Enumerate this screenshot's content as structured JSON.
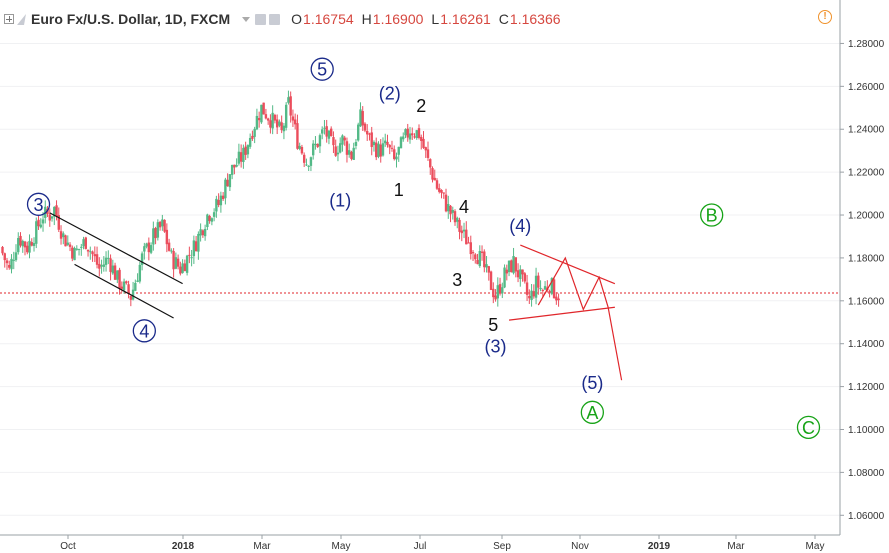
{
  "header": {
    "symbol": "Euro Fx/U.S. Dollar, 1D, FXCM",
    "open_label": "O",
    "open": "1.16754",
    "high_label": "H",
    "high": "1.16900",
    "low_label": "L",
    "low": "1.16261",
    "close_label": "C",
    "close": "1.16366",
    "warning_icon": "!"
  },
  "colors": {
    "up": "#53b987",
    "down": "#eb4d5c",
    "wave_blue": "#1a2a8a",
    "wave_green": "#17a317",
    "wave_black": "#111111",
    "triangle_red": "#e0262b",
    "price_line": "#e0262b"
  },
  "chart_data": {
    "type": "candlestick",
    "ylim": [
      1.055,
      1.29
    ],
    "x_ticks": [
      "Oct",
      "2018",
      "Mar",
      "May",
      "Jul",
      "Sep",
      "Nov",
      "2019",
      "Mar",
      "May"
    ],
    "y_ticks": [
      "1.28000",
      "1.26000",
      "1.24000",
      "1.22000",
      "1.20000",
      "1.18000",
      "1.16000",
      "1.14000",
      "1.12000",
      "1.10000",
      "1.08000",
      "1.06000"
    ],
    "current_price": 1.16366,
    "anchors": [
      {
        "t": 0,
        "p": 1.185
      },
      {
        "t": 4,
        "p": 1.174
      },
      {
        "t": 8,
        "p": 1.19
      },
      {
        "t": 12,
        "p": 1.185
      },
      {
        "t": 16,
        "p": 1.193
      },
      {
        "t": 19,
        "p": 1.2
      },
      {
        "t": 22,
        "p": 1.2
      },
      {
        "t": 24,
        "p": 1.203
      },
      {
        "t": 28,
        "p": 1.19
      },
      {
        "t": 33,
        "p": 1.182
      },
      {
        "t": 38,
        "p": 1.188
      },
      {
        "t": 44,
        "p": 1.175
      },
      {
        "t": 48,
        "p": 1.18
      },
      {
        "t": 52,
        "p": 1.17
      },
      {
        "t": 58,
        "p": 1.162
      },
      {
        "t": 63,
        "p": 1.18
      },
      {
        "t": 68,
        "p": 1.19
      },
      {
        "t": 72,
        "p": 1.195
      },
      {
        "t": 76,
        "p": 1.18
      },
      {
        "t": 80,
        "p": 1.175
      },
      {
        "t": 86,
        "p": 1.185
      },
      {
        "t": 92,
        "p": 1.2
      },
      {
        "t": 97,
        "p": 1.205
      },
      {
        "t": 102,
        "p": 1.22
      },
      {
        "t": 108,
        "p": 1.228
      },
      {
        "t": 112,
        "p": 1.24
      },
      {
        "t": 116,
        "p": 1.25
      },
      {
        "t": 120,
        "p": 1.245
      },
      {
        "t": 125,
        "p": 1.238
      },
      {
        "t": 128,
        "p": 1.252
      },
      {
        "t": 132,
        "p": 1.235
      },
      {
        "t": 136,
        "p": 1.225
      },
      {
        "t": 140,
        "p": 1.232
      },
      {
        "t": 144,
        "p": 1.24
      },
      {
        "t": 148,
        "p": 1.23
      },
      {
        "t": 152,
        "p": 1.235
      },
      {
        "t": 156,
        "p": 1.228
      },
      {
        "t": 160,
        "p": 1.245
      },
      {
        "t": 164,
        "p": 1.235
      },
      {
        "t": 168,
        "p": 1.23
      },
      {
        "t": 172,
        "p": 1.232
      },
      {
        "t": 175,
        "p": 1.225
      },
      {
        "t": 178,
        "p": 1.232
      },
      {
        "t": 182,
        "p": 1.24
      },
      {
        "t": 186,
        "p": 1.238
      },
      {
        "t": 190,
        "p": 1.225
      },
      {
        "t": 194,
        "p": 1.213
      },
      {
        "t": 198,
        "p": 1.205
      },
      {
        "t": 202,
        "p": 1.197
      },
      {
        "t": 206,
        "p": 1.19
      },
      {
        "t": 210,
        "p": 1.185
      },
      {
        "t": 214,
        "p": 1.178
      },
      {
        "t": 217,
        "p": 1.17
      },
      {
        "t": 220,
        "p": 1.162
      },
      {
        "t": 224,
        "p": 1.172
      },
      {
        "t": 228,
        "p": 1.178
      },
      {
        "t": 232,
        "p": 1.168
      },
      {
        "t": 235,
        "p": 1.16
      },
      {
        "t": 238,
        "p": 1.168
      },
      {
        "t": 241,
        "p": 1.165
      },
      {
        "t": 244,
        "p": 1.168
      },
      {
        "t": 247,
        "p": 1.163
      }
    ],
    "wave_labels": [
      {
        "text": "3",
        "t": 16,
        "p": 1.205,
        "style": "circle-blue"
      },
      {
        "text": "4",
        "t": 63,
        "p": 1.146,
        "style": "circle-blue"
      },
      {
        "text": "5",
        "t": 142,
        "p": 1.268,
        "style": "circle-blue"
      },
      {
        "text": "(2)",
        "t": 172,
        "p": 1.257,
        "style": "blue"
      },
      {
        "text": "2",
        "t": 186,
        "p": 1.251,
        "style": "black"
      },
      {
        "text": "(1)",
        "t": 150,
        "p": 1.207,
        "style": "blue"
      },
      {
        "text": "1",
        "t": 176,
        "p": 1.212,
        "style": "black"
      },
      {
        "text": "4",
        "t": 205,
        "p": 1.204,
        "style": "black"
      },
      {
        "text": "3",
        "t": 202,
        "p": 1.17,
        "style": "black"
      },
      {
        "text": "(4)",
        "t": 230,
        "p": 1.195,
        "style": "blue"
      },
      {
        "text": "5",
        "t": 218,
        "p": 1.149,
        "style": "black"
      },
      {
        "text": "(3)",
        "t": 219,
        "p": 1.139,
        "style": "blue"
      },
      {
        "text": "(5)",
        "t": 262,
        "p": 1.122,
        "style": "blue"
      },
      {
        "text": "A",
        "t": 262,
        "p": 1.108,
        "style": "circle-green"
      },
      {
        "text": "B",
        "t": 315,
        "p": 1.2,
        "style": "circle-green"
      },
      {
        "text": "C",
        "t": 358,
        "p": 1.101,
        "style": "circle-green"
      }
    ],
    "channel_lines": [
      {
        "from": {
          "t": 21,
          "p": 1.201
        },
        "to": {
          "t": 80,
          "p": 1.168
        }
      },
      {
        "from": {
          "t": 32,
          "p": 1.177
        },
        "to": {
          "t": 76,
          "p": 1.152
        }
      }
    ],
    "triangle": {
      "upper": {
        "from": {
          "t": 230,
          "p": 1.186
        },
        "to": {
          "t": 272,
          "p": 1.168
        }
      },
      "lower": {
        "from": {
          "t": 225,
          "p": 1.151
        },
        "to": {
          "t": 272,
          "p": 1.157
        }
      },
      "zigzag": [
        {
          "t": 238,
          "p": 1.158
        },
        {
          "t": 250,
          "p": 1.18
        },
        {
          "t": 258,
          "p": 1.156
        },
        {
          "t": 265,
          "p": 1.171
        },
        {
          "t": 269,
          "p": 1.157
        },
        {
          "t": 275,
          "p": 1.123
        }
      ]
    }
  }
}
